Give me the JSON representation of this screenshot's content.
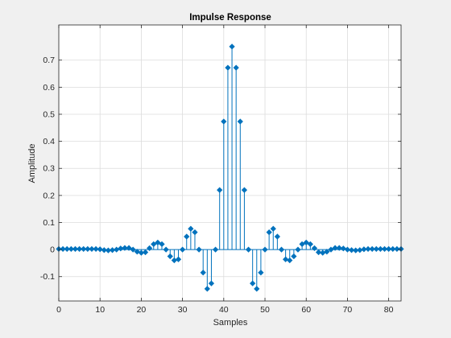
{
  "chart_data": {
    "type": "stem",
    "title": "Impulse Response",
    "xlabel": "Samples",
    "ylabel": "Amplitude",
    "xlim": [
      0,
      83
    ],
    "ylim": [
      -0.19,
      0.83
    ],
    "xticks": [
      0,
      10,
      20,
      30,
      40,
      50,
      60,
      70,
      80
    ],
    "yticks": [
      -0.1,
      0,
      0.1,
      0.2,
      0.3,
      0.4,
      0.5,
      0.6,
      0.7
    ],
    "ytick_labels": [
      "-0.1",
      "0",
      "0.1",
      "0.2",
      "0.3",
      "0.4",
      "0.5",
      "0.6",
      "0.7"
    ],
    "grid": true,
    "color": "#0072BD",
    "x": [
      0,
      1,
      2,
      3,
      4,
      5,
      6,
      7,
      8,
      9,
      10,
      11,
      12,
      13,
      14,
      15,
      16,
      17,
      18,
      19,
      20,
      21,
      22,
      23,
      24,
      25,
      26,
      27,
      28,
      29,
      30,
      31,
      32,
      33,
      34,
      35,
      36,
      37,
      38,
      39,
      40,
      41,
      42,
      43,
      44,
      45,
      46,
      47,
      48,
      49,
      50,
      51,
      52,
      53,
      54,
      55,
      56,
      57,
      58,
      59,
      60,
      61,
      62,
      63,
      64,
      65,
      66,
      67,
      68,
      69,
      70,
      71,
      72,
      73,
      74,
      75,
      76,
      77,
      78,
      79,
      80,
      81,
      82,
      83
    ],
    "values": [
      0.002,
      0.002,
      0.002,
      0.002,
      0.002,
      0.002,
      0.002,
      0.002,
      0.002,
      0.002,
      0.001,
      -0.002,
      -0.003,
      -0.002,
      0.0,
      0.004,
      0.006,
      0.006,
      0.0,
      -0.008,
      -0.012,
      -0.01,
      0.005,
      0.02,
      0.026,
      0.02,
      0.0,
      -0.025,
      -0.04,
      -0.036,
      0.0,
      0.048,
      0.077,
      0.064,
      0.0,
      -0.085,
      -0.145,
      -0.125,
      0.0,
      0.22,
      0.473,
      0.672,
      0.75,
      0.672,
      0.473,
      0.22,
      0.0,
      -0.125,
      -0.145,
      -0.085,
      0.0,
      0.064,
      0.077,
      0.048,
      0.0,
      -0.036,
      -0.04,
      -0.025,
      0.0,
      0.02,
      0.026,
      0.02,
      0.005,
      -0.01,
      -0.012,
      -0.008,
      0.0,
      0.006,
      0.006,
      0.004,
      0.0,
      -0.002,
      -0.003,
      -0.002,
      0.001,
      0.002,
      0.002,
      0.002,
      0.002,
      0.002,
      0.002,
      0.002,
      0.002,
      0.002
    ]
  }
}
